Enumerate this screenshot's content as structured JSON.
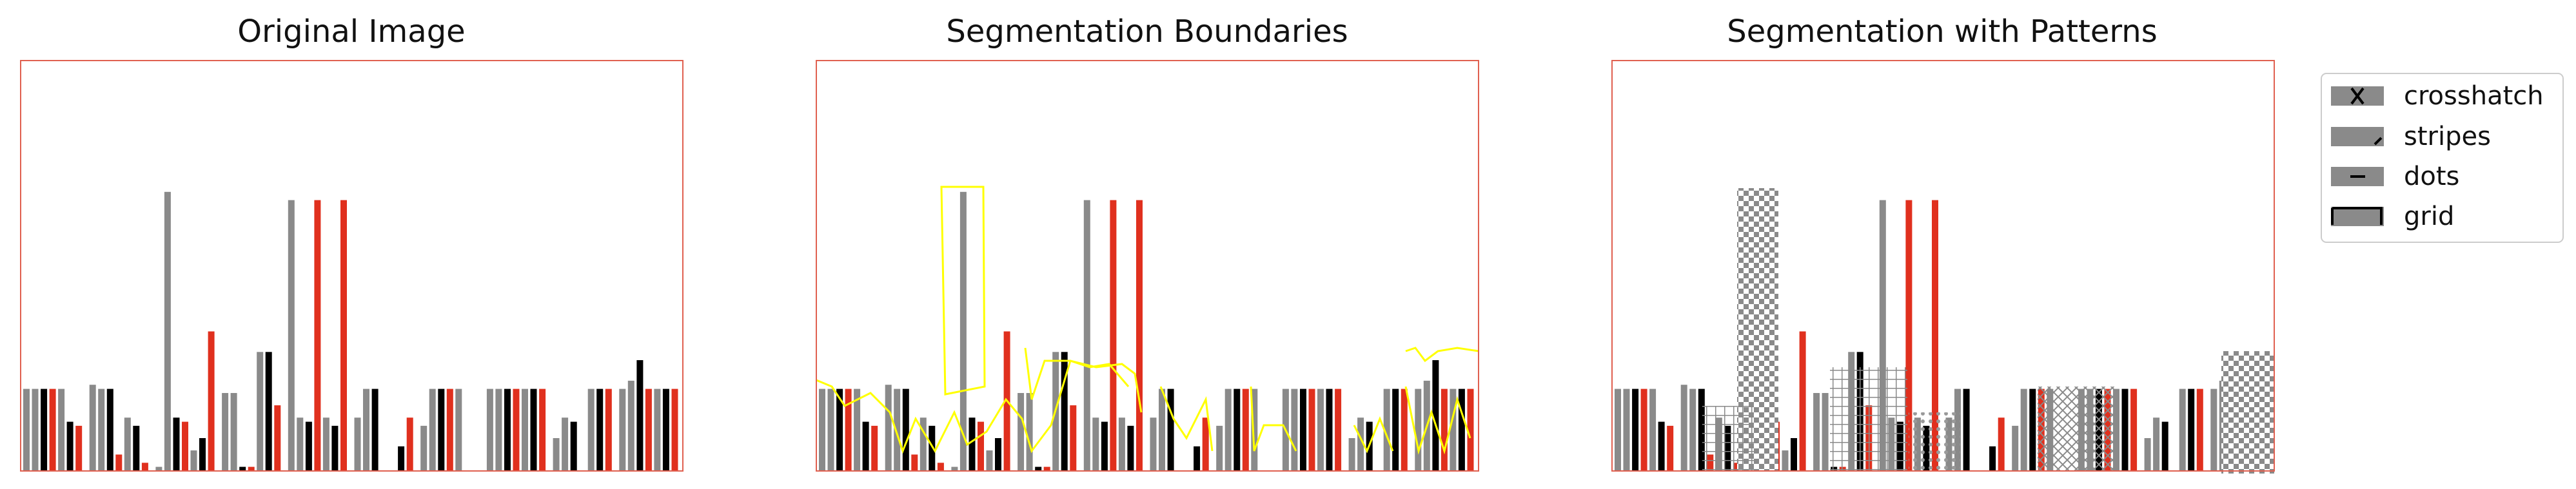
{
  "chart_data": [
    {
      "type": "bar",
      "title": "Original Image",
      "boundaries": false,
      "patterns": false
    },
    {
      "type": "bar",
      "title": "Segmentation Boundaries",
      "boundaries": true,
      "patterns": false
    },
    {
      "type": "bar",
      "title": "Segmentation with Patterns",
      "boundaries": false,
      "patterns": true
    }
  ],
  "bars": {
    "groups": [
      [
        0.2,
        0.2,
        0.2,
        0.2,
        0.2,
        0.12,
        0.11
      ],
      [
        0.21,
        0.2,
        0.2,
        0.04,
        0.13,
        0.11,
        0.02
      ],
      [
        0.01,
        0.68,
        0.13,
        0.12,
        0.05,
        0.08,
        0.34
      ],
      [
        0.19,
        0.19,
        0.01,
        0.01,
        0.29,
        0.29,
        0.16
      ],
      [
        0.66,
        0.13,
        0.12,
        0.66,
        0.13,
        0.11,
        0.66
      ],
      [
        0.13,
        0.2,
        0.2,
        0.0,
        0.0,
        0.06,
        0.13
      ],
      [
        0.11,
        0.2,
        0.2,
        0.2,
        0.2,
        0.0,
        0.0
      ],
      [
        0.2,
        0.2,
        0.2,
        0.2,
        0.2,
        0.2,
        0.2
      ],
      [
        0.08,
        0.13,
        0.12,
        0.0,
        0.2,
        0.2,
        0.2
      ],
      [
        0.2,
        0.22,
        0.27,
        0.2,
        0.2,
        0.2,
        0.2
      ]
    ],
    "series_colors": [
      "#8a8a8a",
      "#8a8a8a",
      "#000000",
      "#e0301e",
      "#8a8a8a",
      "#000000",
      "#e0301e"
    ]
  },
  "legend": {
    "items": [
      {
        "label": "crosshatch",
        "pattern": "crosshatch"
      },
      {
        "label": "stripes",
        "pattern": "stripes"
      },
      {
        "label": "dots",
        "pattern": "dots"
      },
      {
        "label": "grid",
        "pattern": "grid"
      }
    ]
  },
  "colors": {
    "frame": "#e06050",
    "boundary": "#ffff00",
    "bar_gray": "#8a8a8a",
    "bar_black": "#000000",
    "bar_red": "#e0301e"
  }
}
